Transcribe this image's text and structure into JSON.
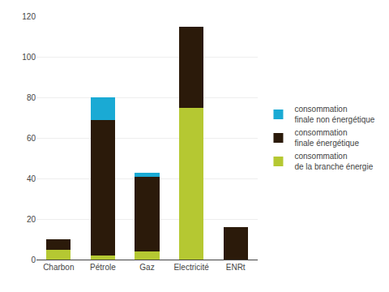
{
  "chart_data": {
    "type": "bar",
    "stacked": true,
    "categories": [
      "Charbon",
      "Pétrole",
      "Gaz",
      "Electricité",
      "ENRt"
    ],
    "series": [
      {
        "name": "consommation\nde la branche énergie",
        "color": "#b5c832",
        "values": [
          5,
          2,
          4,
          75,
          0
        ]
      },
      {
        "name": "consommation\nfinale énergétique",
        "color": "#2b1a0a",
        "values": [
          5,
          67,
          37,
          40,
          16
        ]
      },
      {
        "name": "consommation\nfinale non énergétique",
        "color": "#1aaad4",
        "values": [
          0,
          11,
          2,
          0,
          0
        ]
      }
    ],
    "ylim": [
      0,
      120
    ],
    "yticks": [
      0,
      20,
      40,
      60,
      80,
      100,
      120
    ],
    "grid": true,
    "legend": "right"
  }
}
